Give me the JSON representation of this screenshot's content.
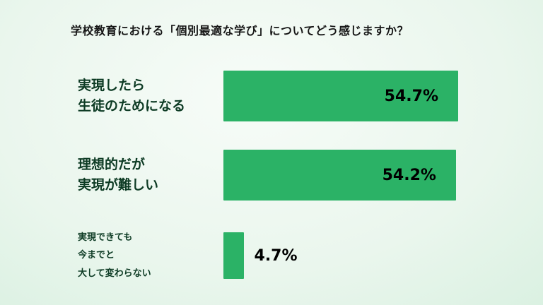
{
  "chart_data": {
    "type": "bar",
    "orientation": "horizontal",
    "title": "学校教育における「個別最適な学び」についてどう感じますか？",
    "categories": [
      "実現したら\n生徒のためになる",
      "理想的だが\n実現が難しい",
      "実現できても\n今までと\n大して変わらない"
    ],
    "values": [
      54.7,
      54.2,
      4.7
    ],
    "value_labels": [
      "54.7%",
      "54.2%",
      "4.7%"
    ],
    "bar_color": "#2bb266",
    "label_color": "#0d3b24",
    "value_text_color": "#000000",
    "xlim": [
      0,
      54.7
    ],
    "grid": false,
    "legend": "none"
  }
}
